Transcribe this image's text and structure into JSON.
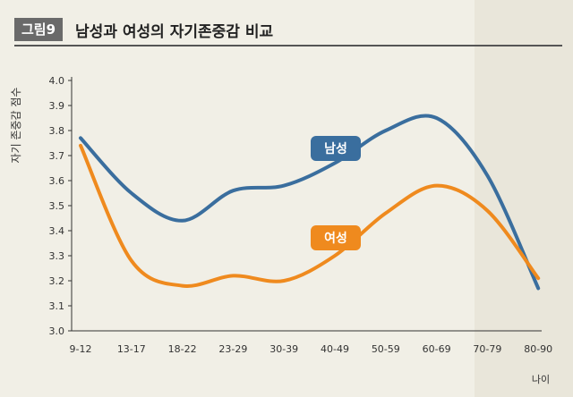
{
  "figure": {
    "badge": "그림9",
    "title": "남성과 여성의 자기존중감 비교"
  },
  "chart_data": {
    "type": "line",
    "categories": [
      "9-12",
      "13-17",
      "18-22",
      "23-29",
      "30-39",
      "40-49",
      "50-59",
      "60-69",
      "70-79",
      "80-90"
    ],
    "ylim": [
      3.0,
      4.0
    ],
    "yticks": [
      "3.0",
      "3.1",
      "3.2",
      "3.3",
      "3.4",
      "3.5",
      "3.6",
      "3.7",
      "3.8",
      "3.9",
      "4.0"
    ],
    "ylabel": "자기 존중감 점수",
    "xlabel": "나이",
    "grid": false,
    "series": [
      {
        "name": "남성",
        "color": "#3a6e9e",
        "values": [
          3.77,
          3.55,
          3.44,
          3.56,
          3.58,
          3.67,
          3.8,
          3.85,
          3.62,
          3.17
        ]
      },
      {
        "name": "여성",
        "color": "#ef8a1e",
        "values": [
          3.74,
          3.28,
          3.18,
          3.22,
          3.2,
          3.3,
          3.47,
          3.58,
          3.48,
          3.21
        ]
      }
    ]
  }
}
